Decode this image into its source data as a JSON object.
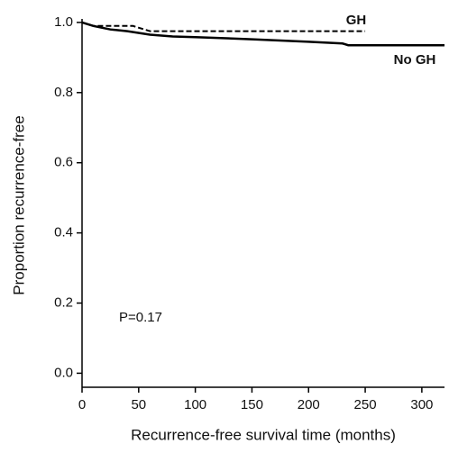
{
  "chart_data": {
    "type": "line",
    "x_label": "Recurrence-free survival time (months)",
    "y_label": "Proportion recurrence-free",
    "xlim": [
      0,
      320
    ],
    "xticks": [
      0,
      50,
      100,
      150,
      200,
      250,
      300
    ],
    "ylim": [
      -0.04,
      1.01
    ],
    "yticks": [
      {
        "value": 0,
        "label": "0.0"
      },
      0.2,
      0.4,
      0.6,
      0.8,
      {
        "value": 1,
        "label": "1.0"
      }
    ],
    "series": [
      {
        "name": "GH",
        "color": "#000000",
        "dash": true,
        "x": [
          0,
          10,
          45,
          55,
          60,
          250
        ],
        "values": [
          1.0,
          0.99,
          0.99,
          0.98,
          0.975,
          0.975
        ]
      },
      {
        "name": "No GH",
        "color": "#000000",
        "dash": false,
        "x": [
          0,
          10,
          25,
          40,
          60,
          80,
          100,
          150,
          200,
          230,
          235,
          320
        ],
        "values": [
          1.0,
          0.99,
          0.98,
          0.975,
          0.965,
          0.96,
          0.958,
          0.952,
          0.945,
          0.94,
          0.935,
          0.935
        ]
      }
    ],
    "annotations": [
      "P=0.17"
    ]
  }
}
